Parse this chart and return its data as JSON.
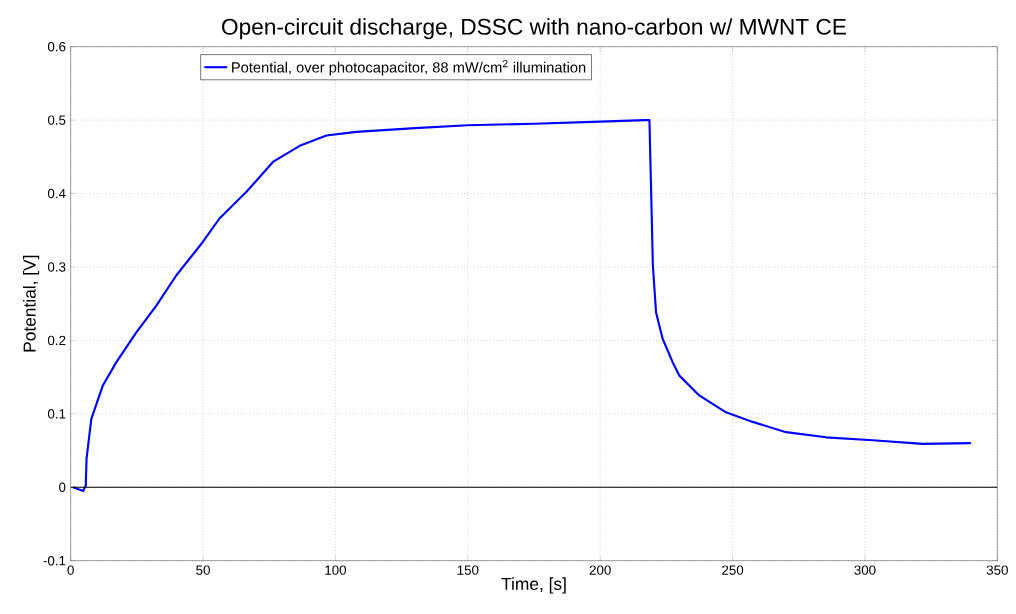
{
  "chart_data": {
    "type": "line",
    "title": "Open-circuit discharge, DSSC with nano-carbon w/ MWNT CE",
    "xlabel": "Time, [s]",
    "ylabel": "Potential, [V]",
    "series": [
      {
        "name": "Potential, over photocapacitor, 88 mW/cm$^{2}$ illumination",
        "color": "#0000ff",
        "x": [
          0.9,
          4.7,
          5.7,
          6.0,
          7.8,
          12.2,
          17.2,
          24.8,
          32.3,
          39.8,
          49.9,
          56.2,
          66.3,
          76.4,
          86.5,
          96.6,
          107.9,
          130,
          150,
          175,
          200,
          217,
          218.6,
          219.3,
          219.9,
          221.1,
          223.6,
          227.4,
          229.9,
          237.4,
          247.5,
          257.6,
          270.2,
          285.3,
          302.9,
          321.8,
          340
        ],
        "values": [
          0,
          -0.005,
          0.002,
          0.039,
          0.093,
          0.139,
          0.17,
          0.211,
          0.247,
          0.288,
          0.334,
          0.366,
          0.402,
          0.443,
          0.465,
          0.479,
          0.484,
          0.489,
          0.493,
          0.495,
          0.498,
          0.5,
          0.5,
          0.393,
          0.302,
          0.238,
          0.202,
          0.17,
          0.152,
          0.125,
          0.102,
          0.089,
          0.075,
          0.068,
          0.064,
          0.059,
          0.06
        ]
      }
    ],
    "xlim": [
      0,
      350
    ],
    "ylim": [
      -0.1,
      0.6
    ],
    "xticks": [
      0,
      50,
      100,
      150,
      200,
      250,
      300,
      350
    ],
    "yticks": [
      -0.1,
      0,
      0.1,
      0.2,
      0.3,
      0.4,
      0.5,
      0.6
    ],
    "ref_lines": [
      {
        "axis": "y",
        "value": 0,
        "color": "#000000"
      }
    ],
    "grid": true,
    "legend": "top",
    "marker": "none",
    "line_style": "solid"
  }
}
